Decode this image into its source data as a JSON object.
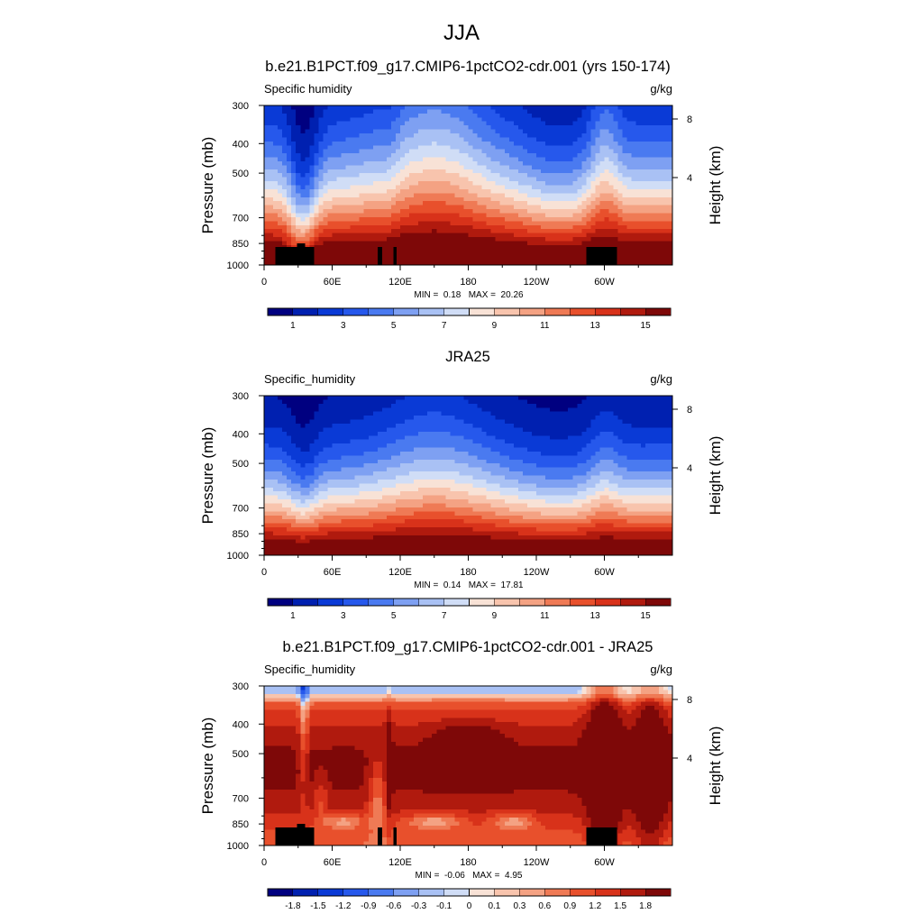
{
  "figure_title": "JJA",
  "chart_data": [
    {
      "type": "heatmap",
      "title": "b.e21.B1PCT.f09_g17.CMIP6-1pctCO2-cdr.001 (yrs 150-174)",
      "left_string": "Specific humidity",
      "right_string": "g/kg",
      "ylabel": "Pressure (mb)",
      "ylabel_right": "Height (km)",
      "x_ticks": [
        "0",
        "60E",
        "120E",
        "180",
        "120W",
        "60W"
      ],
      "x_tick_lons": [
        0,
        60,
        120,
        180,
        240,
        300
      ],
      "xlim": [
        0,
        360
      ],
      "y_ticks": [
        300,
        400,
        500,
        700,
        850,
        1000
      ],
      "ylim": [
        1000,
        300
      ],
      "height_ticks": [
        4,
        8
      ],
      "min_label": "MIN =",
      "min": "0.18",
      "max_label": "MAX =",
      "max": "20.26",
      "field": "model",
      "colorbar": {
        "levels": [
          0,
          1,
          2,
          3,
          4,
          5,
          6,
          7,
          8,
          9,
          10,
          11,
          12,
          13,
          14,
          15
        ],
        "labels": [
          "1",
          "3",
          "5",
          "7",
          "9",
          "11",
          "13",
          "15"
        ],
        "colors": [
          "#000080",
          "#0020b0",
          "#0a3ad6",
          "#2658ec",
          "#4a7af0",
          "#7ea0f2",
          "#a9c1f4",
          "#d0ddf6",
          "#f8e2d6",
          "#f8c4ad",
          "#f4a283",
          "#ef7a55",
          "#e8502c",
          "#d8321a",
          "#b01a0e",
          "#7e0808"
        ]
      },
      "terrain": true
    },
    {
      "type": "heatmap",
      "title": "JRA25",
      "left_string": "Specific_humidity",
      "right_string": "g/kg",
      "ylabel": "Pressure (mb)",
      "ylabel_right": "Height (km)",
      "x_ticks": [
        "0",
        "60E",
        "120E",
        "180",
        "120W",
        "60W"
      ],
      "x_tick_lons": [
        0,
        60,
        120,
        180,
        240,
        300
      ],
      "xlim": [
        0,
        360
      ],
      "y_ticks": [
        300,
        400,
        500,
        700,
        850,
        1000
      ],
      "ylim": [
        1000,
        300
      ],
      "height_ticks": [
        4,
        8
      ],
      "min_label": "MIN =",
      "min": "0.14",
      "max_label": "MAX =",
      "max": "17.81",
      "field": "obs",
      "colorbar": {
        "levels": [
          0,
          1,
          2,
          3,
          4,
          5,
          6,
          7,
          8,
          9,
          10,
          11,
          12,
          13,
          14,
          15
        ],
        "labels": [
          "1",
          "3",
          "5",
          "7",
          "9",
          "11",
          "13",
          "15"
        ],
        "colors": [
          "#000080",
          "#0020b0",
          "#0a3ad6",
          "#2658ec",
          "#4a7af0",
          "#7ea0f2",
          "#a9c1f4",
          "#d0ddf6",
          "#f8e2d6",
          "#f8c4ad",
          "#f4a283",
          "#ef7a55",
          "#e8502c",
          "#d8321a",
          "#b01a0e",
          "#7e0808"
        ]
      },
      "terrain": false
    },
    {
      "type": "heatmap",
      "title": "b.e21.B1PCT.f09_g17.CMIP6-1pctCO2-cdr.001 - JRA25",
      "left_string": "Specific_humidity",
      "right_string": "g/kg",
      "ylabel": "Pressure (mb)",
      "ylabel_right": "Height (km)",
      "x_ticks": [
        "0",
        "60E",
        "120E",
        "180",
        "120W",
        "60W"
      ],
      "x_tick_lons": [
        0,
        60,
        120,
        180,
        240,
        300
      ],
      "xlim": [
        0,
        360
      ],
      "y_ticks": [
        300,
        400,
        500,
        700,
        850,
        1000
      ],
      "ylim": [
        1000,
        300
      ],
      "height_ticks": [
        4,
        8
      ],
      "min_label": "MIN =",
      "min": "-0.06",
      "max_label": "MAX =",
      "max": "4.95",
      "field": "diff",
      "colorbar": {
        "levels": [
          -2.1,
          -1.8,
          -1.5,
          -1.2,
          -0.9,
          -0.6,
          -0.3,
          -0.1,
          0,
          0.1,
          0.3,
          0.6,
          0.9,
          1.2,
          1.5,
          1.8
        ],
        "labels": [
          "-1.8",
          "-1.5",
          "-1.2",
          "-0.9",
          "-0.6",
          "-0.3",
          "-0.1",
          "0",
          "0.1",
          "0.3",
          "0.6",
          "0.9",
          "1.2",
          "1.5",
          "1.8"
        ],
        "colors": [
          "#000080",
          "#0020b0",
          "#0a3ad6",
          "#2658ec",
          "#4a7af0",
          "#7ea0f2",
          "#a9c1f4",
          "#d0ddf6",
          "#f8e2d6",
          "#f8c4ad",
          "#f4a283",
          "#ef7a55",
          "#e8502c",
          "#d8321a",
          "#b01a0e",
          "#7e0808"
        ]
      },
      "terrain": true
    }
  ]
}
